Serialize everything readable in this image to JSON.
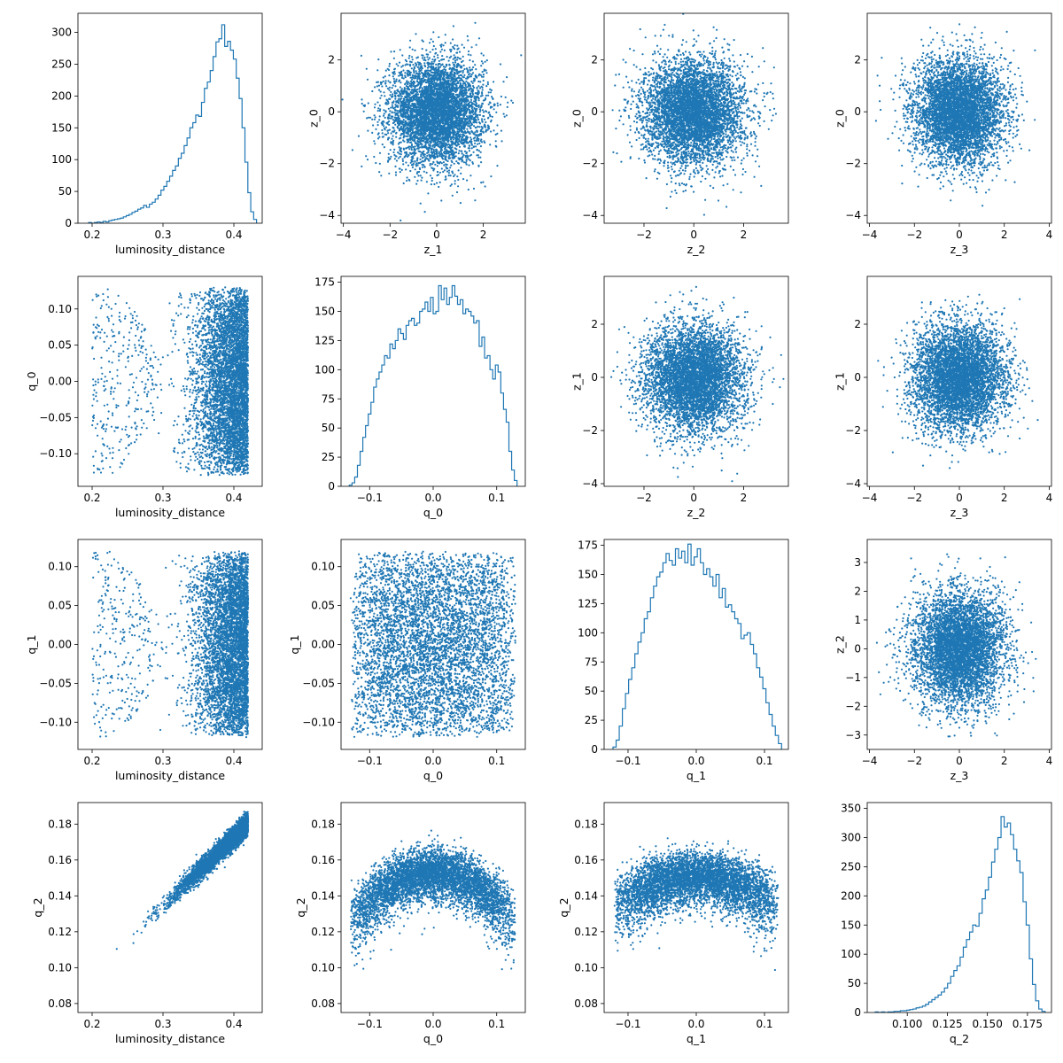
{
  "figure": {
    "color": "#1f77b4",
    "panel_count": 16,
    "layout": "4x4 grid"
  },
  "chart_data": [
    {
      "type": "histogram",
      "position": [
        0,
        0
      ],
      "xlabel": "luminosity_distance",
      "ylabel": "",
      "xlim": [
        0.18,
        0.44
      ],
      "ylim": [
        0,
        330
      ],
      "xticks": [
        0.2,
        0.3,
        0.4
      ],
      "xticklabels": [
        "0.2",
        "0.3",
        "0.4"
      ],
      "yticks": [
        0,
        50,
        100,
        150,
        200,
        250,
        300
      ],
      "yticklabels": [
        "0",
        "50",
        "100",
        "150",
        "200",
        "250",
        "300"
      ],
      "bins": [
        0.195,
        0.432
      ],
      "counts": [
        1,
        0,
        1,
        2,
        1,
        3,
        2,
        4,
        5,
        6,
        7,
        8,
        10,
        12,
        14,
        17,
        19,
        22,
        24,
        28,
        25,
        30,
        33,
        38,
        44,
        52,
        58,
        66,
        74,
        83,
        90,
        102,
        110,
        122,
        134,
        150,
        158,
        170,
        168,
        190,
        212,
        222,
        240,
        262,
        285,
        290,
        312,
        278,
        286,
        272,
        258,
        228,
        196,
        150,
        96,
        48,
        18,
        6
      ]
    },
    {
      "type": "scatter",
      "position": [
        0,
        1
      ],
      "xlabel": "z_1",
      "ylabel": "z_0",
      "xlim": [
        -4.1,
        3.8
      ],
      "ylim": [
        -4.3,
        3.8
      ],
      "xticks": [
        -4,
        -2,
        0,
        2
      ],
      "xticklabels": [
        "−4",
        "−2",
        "0",
        "2"
      ],
      "yticks": [
        -4,
        -2,
        0,
        2
      ],
      "yticklabels": [
        "−4",
        "−2",
        "0",
        "2"
      ],
      "distribution": {
        "x": {
          "kind": "normal",
          "mean": 0,
          "sd": 1
        },
        "y": {
          "kind": "normal",
          "mean": 0,
          "sd": 1
        }
      }
    },
    {
      "type": "scatter",
      "position": [
        0,
        2
      ],
      "xlabel": "z_2",
      "ylabel": "z_0",
      "xlim": [
        -3.6,
        3.8
      ],
      "ylim": [
        -4.3,
        3.8
      ],
      "xticks": [
        -2,
        0,
        2
      ],
      "xticklabels": [
        "−2",
        "0",
        "2"
      ],
      "yticks": [
        -4,
        -2,
        0,
        2
      ],
      "yticklabels": [
        "−4",
        "−2",
        "0",
        "2"
      ],
      "distribution": {
        "x": {
          "kind": "normal",
          "mean": 0,
          "sd": 1
        },
        "y": {
          "kind": "normal",
          "mean": 0,
          "sd": 1
        }
      }
    },
    {
      "type": "scatter",
      "position": [
        0,
        3
      ],
      "xlabel": "z_3",
      "ylabel": "z_0",
      "xlim": [
        -4.1,
        4.1
      ],
      "ylim": [
        -4.3,
        3.8
      ],
      "xticks": [
        -4,
        -2,
        0,
        2,
        4
      ],
      "xticklabels": [
        "−4",
        "−2",
        "0",
        "2",
        "4"
      ],
      "yticks": [
        -4,
        -2,
        0,
        2
      ],
      "yticklabels": [
        "−4",
        "−2",
        "0",
        "2"
      ],
      "distribution": {
        "x": {
          "kind": "normal",
          "mean": 0,
          "sd": 1
        },
        "y": {
          "kind": "normal",
          "mean": 0,
          "sd": 1
        }
      }
    },
    {
      "type": "scatter",
      "position": [
        1,
        0
      ],
      "xlabel": "luminosity_distance",
      "ylabel": "q_0",
      "xlim": [
        0.18,
        0.44
      ],
      "ylim": [
        -0.145,
        0.145
      ],
      "xticks": [
        0.2,
        0.3,
        0.4
      ],
      "xticklabels": [
        "0.2",
        "0.3",
        "0.4"
      ],
      "yticks": [
        -0.1,
        -0.05,
        0,
        0.05,
        0.1
      ],
      "yticklabels": [
        "−0.10",
        "−0.05",
        "0.00",
        "0.05",
        "0.10"
      ],
      "distribution": {
        "x": {
          "kind": "crescent",
          "max": 0.42,
          "spread": 0.035
        },
        "y": {
          "kind": "semicircle",
          "radius": 0.13
        }
      }
    },
    {
      "type": "histogram",
      "position": [
        1,
        1
      ],
      "xlabel": "q_0",
      "ylabel": "",
      "xlim": [
        -0.145,
        0.145
      ],
      "ylim": [
        0,
        180
      ],
      "xticks": [
        -0.1,
        0,
        0.1
      ],
      "xticklabels": [
        "−0.1",
        "0.0",
        "0.1"
      ],
      "yticks": [
        0,
        25,
        50,
        75,
        100,
        125,
        150,
        175
      ],
      "yticklabels": [
        "0",
        "25",
        "50",
        "75",
        "100",
        "125",
        "150",
        "175"
      ],
      "bins": [
        -0.132,
        0.132
      ],
      "counts": [
        1,
        3,
        8,
        18,
        30,
        42,
        52,
        62,
        72,
        85,
        92,
        98,
        104,
        112,
        110,
        122,
        118,
        125,
        135,
        131,
        126,
        138,
        142,
        144,
        138,
        140,
        150,
        152,
        158,
        150,
        162,
        148,
        150,
        172,
        160,
        170,
        156,
        162,
        172,
        163,
        156,
        160,
        148,
        152,
        150,
        146,
        140,
        142,
        120,
        128,
        110,
        112,
        100,
        92,
        104,
        98,
        80,
        66,
        55,
        30,
        14,
        5
      ]
    },
    {
      "type": "scatter",
      "position": [
        1,
        2
      ],
      "xlabel": "z_2",
      "ylabel": "z_1",
      "xlim": [
        -3.6,
        3.8
      ],
      "ylim": [
        -4.1,
        3.8
      ],
      "xticks": [
        -2,
        0,
        2
      ],
      "xticklabels": [
        "−2",
        "0",
        "2"
      ],
      "yticks": [
        -4,
        -2,
        0,
        2
      ],
      "yticklabels": [
        "−4",
        "−2",
        "0",
        "2"
      ],
      "distribution": {
        "x": {
          "kind": "normal",
          "mean": 0,
          "sd": 1
        },
        "y": {
          "kind": "normal",
          "mean": 0,
          "sd": 1
        }
      }
    },
    {
      "type": "scatter",
      "position": [
        1,
        3
      ],
      "xlabel": "z_3",
      "ylabel": "z_1",
      "xlim": [
        -4.1,
        4.1
      ],
      "ylim": [
        -4.1,
        3.8
      ],
      "xticks": [
        -4,
        -2,
        0,
        2,
        4
      ],
      "xticklabels": [
        "−4",
        "−2",
        "0",
        "2",
        "4"
      ],
      "yticks": [
        -4,
        -2,
        0,
        2
      ],
      "yticklabels": [
        "−4",
        "−2",
        "0",
        "2"
      ],
      "distribution": {
        "x": {
          "kind": "normal",
          "mean": 0,
          "sd": 1
        },
        "y": {
          "kind": "normal",
          "mean": 0,
          "sd": 1
        }
      }
    },
    {
      "type": "scatter",
      "position": [
        2,
        0
      ],
      "xlabel": "luminosity_distance",
      "ylabel": "q_1",
      "xlim": [
        0.18,
        0.44
      ],
      "ylim": [
        -0.135,
        0.135
      ],
      "xticks": [
        0.2,
        0.3,
        0.4
      ],
      "xticklabels": [
        "0.2",
        "0.3",
        "0.4"
      ],
      "yticks": [
        -0.1,
        -0.05,
        0,
        0.05,
        0.1
      ],
      "yticklabels": [
        "−0.10",
        "−0.05",
        "0.00",
        "0.05",
        "0.10"
      ],
      "distribution": {
        "x": {
          "kind": "crescent",
          "max": 0.42,
          "spread": 0.035
        },
        "y": {
          "kind": "semicircle",
          "radius": 0.12
        }
      }
    },
    {
      "type": "scatter",
      "position": [
        2,
        1
      ],
      "xlabel": "q_0",
      "ylabel": "q_1",
      "xlim": [
        -0.145,
        0.145
      ],
      "ylim": [
        -0.135,
        0.135
      ],
      "xticks": [
        -0.1,
        0,
        0.1
      ],
      "xticklabels": [
        "−0.1",
        "0.0",
        "0.1"
      ],
      "yticks": [
        -0.1,
        -0.05,
        0,
        0.05,
        0.1
      ],
      "yticklabels": [
        "−0.10",
        "−0.05",
        "0.00",
        "0.05",
        "0.10"
      ],
      "distribution": {
        "x": {
          "kind": "semicircle",
          "radius": 0.13
        },
        "y": {
          "kind": "semicircle",
          "radius": 0.12
        }
      }
    },
    {
      "type": "histogram",
      "position": [
        2,
        2
      ],
      "xlabel": "q_1",
      "ylabel": "",
      "xlim": [
        -0.135,
        0.135
      ],
      "ylim": [
        0,
        180
      ],
      "xticks": [
        -0.1,
        0,
        0.1
      ],
      "xticklabels": [
        "−0.1",
        "0.0",
        "0.1"
      ],
      "yticks": [
        0,
        25,
        50,
        75,
        100,
        125,
        150,
        175
      ],
      "yticklabels": [
        "0",
        "25",
        "50",
        "75",
        "100",
        "125",
        "150",
        "175"
      ],
      "bins": [
        -0.122,
        0.125
      ],
      "counts": [
        2,
        8,
        20,
        35,
        48,
        60,
        70,
        82,
        92,
        100,
        112,
        118,
        130,
        140,
        148,
        152,
        160,
        168,
        162,
        158,
        172,
        164,
        170,
        160,
        176,
        158,
        165,
        172,
        160,
        150,
        155,
        148,
        140,
        150,
        130,
        138,
        122,
        124,
        118,
        112,
        108,
        95,
        98,
        100,
        90,
        82,
        70,
        62,
        52,
        40,
        30,
        20,
        12,
        5
      ]
    },
    {
      "type": "scatter",
      "position": [
        2,
        3
      ],
      "xlabel": "z_3",
      "ylabel": "z_2",
      "xlim": [
        -4.1,
        4.1
      ],
      "ylim": [
        -3.5,
        3.8
      ],
      "xticks": [
        -4,
        -2,
        0,
        2,
        4
      ],
      "xticklabels": [
        "−4",
        "−2",
        "0",
        "2",
        "4"
      ],
      "yticks": [
        -3,
        -2,
        -1,
        0,
        1,
        2,
        3
      ],
      "yticklabels": [
        "−3",
        "−2",
        "−1",
        "0",
        "1",
        "2",
        "3"
      ],
      "distribution": {
        "x": {
          "kind": "normal",
          "mean": 0,
          "sd": 1
        },
        "y": {
          "kind": "normal",
          "mean": 0,
          "sd": 1
        }
      }
    },
    {
      "type": "scatter",
      "position": [
        3,
        0
      ],
      "xlabel": "luminosity_distance",
      "ylabel": "q_2",
      "xlim": [
        0.18,
        0.44
      ],
      "ylim": [
        0.075,
        0.192
      ],
      "xticks": [
        0.2,
        0.3,
        0.4
      ],
      "xticklabels": [
        "0.2",
        "0.3",
        "0.4"
      ],
      "yticks": [
        0.08,
        0.1,
        0.12,
        0.14,
        0.16,
        0.18
      ],
      "yticklabels": [
        "0.08",
        "0.10",
        "0.12",
        "0.14",
        "0.16",
        "0.18"
      ],
      "distribution": {
        "kind": "linear",
        "slope": 0.38,
        "intercept": 0.0205,
        "noise": 0.0028
      }
    },
    {
      "type": "scatter",
      "position": [
        3,
        1
      ],
      "xlabel": "q_0",
      "ylabel": "q_2",
      "xlim": [
        -0.145,
        0.145
      ],
      "ylim": [
        0.075,
        0.192
      ],
      "xticks": [
        -0.1,
        0,
        0.1
      ],
      "xticklabels": [
        "−0.1",
        "0.0",
        "0.1"
      ],
      "yticks": [
        0.08,
        0.1,
        0.12,
        0.14,
        0.16,
        0.18
      ],
      "yticklabels": [
        "0.08",
        "0.10",
        "0.12",
        "0.14",
        "0.16",
        "0.18"
      ],
      "distribution": {
        "kind": "arch",
        "radius": 0.13,
        "top": 0.158,
        "drop": 0.024,
        "spread": 0.011
      }
    },
    {
      "type": "scatter",
      "position": [
        3,
        2
      ],
      "xlabel": "q_1",
      "ylabel": "q_2",
      "xlim": [
        -0.135,
        0.135
      ],
      "ylim": [
        0.075,
        0.192
      ],
      "xticks": [
        -0.1,
        0,
        0.1
      ],
      "xticklabels": [
        "−0.1",
        "0.0",
        "0.1"
      ],
      "yticks": [
        0.08,
        0.1,
        0.12,
        0.14,
        0.16,
        0.18
      ],
      "yticklabels": [
        "0.08",
        "0.10",
        "0.12",
        "0.14",
        "0.16",
        "0.18"
      ],
      "distribution": {
        "kind": "arch",
        "radius": 0.12,
        "top": 0.156,
        "drop": 0.012,
        "spread": 0.012
      }
    },
    {
      "type": "histogram",
      "position": [
        3,
        3
      ],
      "xlabel": "q_2",
      "ylabel": "",
      "xlim": [
        0.075,
        0.19
      ],
      "ylim": [
        0,
        360
      ],
      "xticks": [
        0.1,
        0.125,
        0.15,
        0.175
      ],
      "xticklabels": [
        "0.100",
        "0.125",
        "0.150",
        "0.175"
      ],
      "yticks": [
        0,
        50,
        100,
        150,
        200,
        250,
        300,
        350
      ],
      "yticklabels": [
        "0",
        "50",
        "100",
        "150",
        "200",
        "250",
        "300",
        "350"
      ],
      "bins": [
        0.08,
        0.186
      ],
      "counts": [
        1,
        0,
        1,
        0,
        1,
        1,
        2,
        2,
        3,
        3,
        4,
        5,
        6,
        8,
        9,
        11,
        14,
        18,
        22,
        26,
        30,
        35,
        42,
        50,
        62,
        72,
        80,
        95,
        112,
        125,
        138,
        150,
        148,
        170,
        195,
        210,
        232,
        258,
        280,
        300,
        336,
        318,
        325,
        305,
        280,
        260,
        240,
        190,
        150,
        92,
        48,
        20,
        6,
        2
      ]
    }
  ]
}
